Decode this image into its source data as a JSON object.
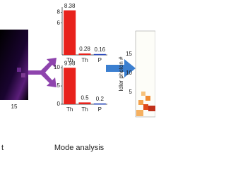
{
  "chart_data": [
    {
      "type": "bar",
      "categories": [
        "Th",
        "Th",
        "P"
      ],
      "values": [
        8.38,
        0.28,
        0.16
      ],
      "colors": [
        "#e8221c",
        "#e8221c",
        "#1f3fb8"
      ],
      "ylim": [
        0,
        9
      ],
      "yticks": [
        6,
        8
      ]
    },
    {
      "type": "bar",
      "categories": [
        "Th",
        "Th",
        "P"
      ],
      "values": [
        9.98,
        0.5,
        0.2
      ],
      "colors": [
        "#e8221c",
        "#e8221c",
        "#1f3fb8"
      ],
      "ylim": [
        0,
        10.6
      ],
      "yticks": [
        0,
        5,
        10
      ]
    }
  ],
  "left_panel": {
    "tick": "15",
    "label": "t"
  },
  "right_panel": {
    "axis_label": "Idler photon #",
    "ticks": [
      "15",
      "10",
      "5"
    ]
  },
  "caption": "Mode analysis"
}
